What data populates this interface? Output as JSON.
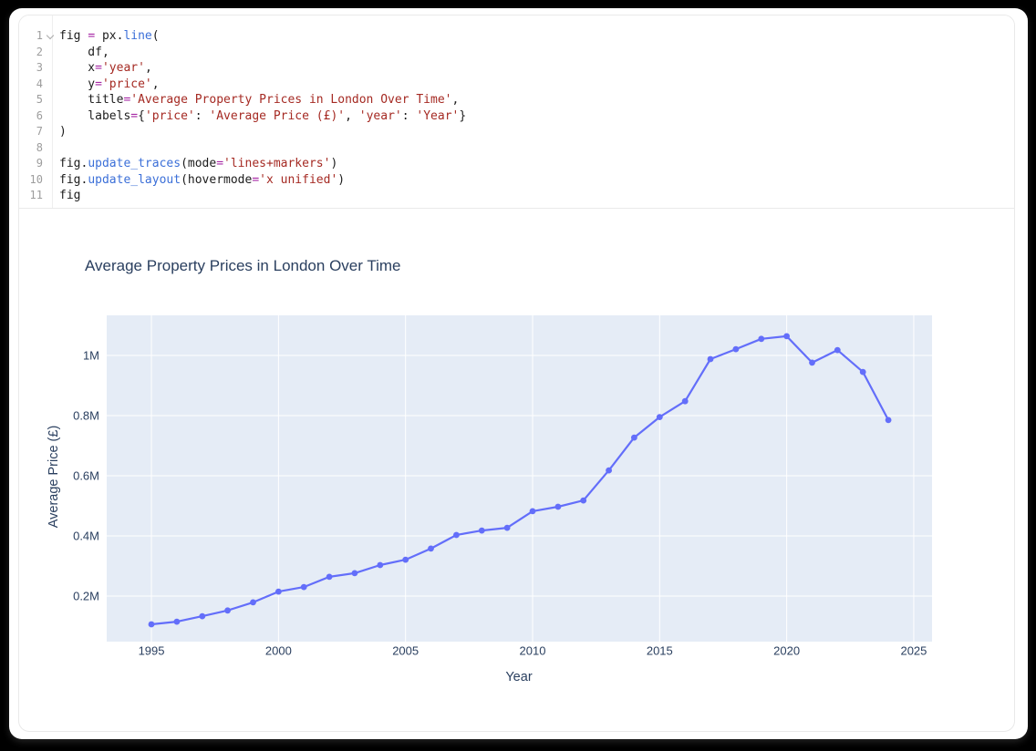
{
  "window": {
    "frame_color": "#000000",
    "card_color": "#ffffff"
  },
  "editor": {
    "border_color": "#e9e9e9",
    "gutter_color": "#9d9d9d",
    "colors": {
      "plain": "#1c1c1c",
      "function": "#3b6fd8",
      "operator": "#a626a4",
      "string": "#a52a23"
    },
    "lines": [
      {
        "num": "1",
        "fold": true,
        "tokens": [
          [
            "plain",
            "fig "
          ],
          [
            "operator",
            "="
          ],
          [
            "plain",
            " px."
          ],
          [
            "function",
            "line"
          ],
          [
            "plain",
            "("
          ]
        ]
      },
      {
        "num": "2",
        "tokens": [
          [
            "plain",
            "    df,"
          ]
        ]
      },
      {
        "num": "3",
        "tokens": [
          [
            "plain",
            "    x"
          ],
          [
            "operator",
            "="
          ],
          [
            "string",
            "'year'"
          ],
          [
            "plain",
            ","
          ]
        ]
      },
      {
        "num": "4",
        "tokens": [
          [
            "plain",
            "    y"
          ],
          [
            "operator",
            "="
          ],
          [
            "string",
            "'price'"
          ],
          [
            "plain",
            ","
          ]
        ]
      },
      {
        "num": "5",
        "tokens": [
          [
            "plain",
            "    title"
          ],
          [
            "operator",
            "="
          ],
          [
            "string",
            "'Average Property Prices in London Over Time'"
          ],
          [
            "plain",
            ","
          ]
        ]
      },
      {
        "num": "6",
        "tokens": [
          [
            "plain",
            "    labels"
          ],
          [
            "operator",
            "="
          ],
          [
            "plain",
            "{"
          ],
          [
            "string",
            "'price'"
          ],
          [
            "plain",
            ": "
          ],
          [
            "string",
            "'Average Price (£)'"
          ],
          [
            "plain",
            ", "
          ],
          [
            "string",
            "'year'"
          ],
          [
            "plain",
            ": "
          ],
          [
            "string",
            "'Year'"
          ],
          [
            "plain",
            "}"
          ]
        ]
      },
      {
        "num": "7",
        "tokens": [
          [
            "plain",
            ")"
          ]
        ]
      },
      {
        "num": "8",
        "tokens": []
      },
      {
        "num": "9",
        "tokens": [
          [
            "plain",
            "fig."
          ],
          [
            "function",
            "update_traces"
          ],
          [
            "plain",
            "(mode"
          ],
          [
            "operator",
            "="
          ],
          [
            "string",
            "'lines+markers'"
          ],
          [
            "plain",
            ")"
          ]
        ]
      },
      {
        "num": "10",
        "tokens": [
          [
            "plain",
            "fig."
          ],
          [
            "function",
            "update_layout"
          ],
          [
            "plain",
            "(hovermode"
          ],
          [
            "operator",
            "="
          ],
          [
            "string",
            "'x unified'"
          ],
          [
            "plain",
            ")"
          ]
        ]
      },
      {
        "num": "11",
        "tokens": [
          [
            "plain",
            "fig"
          ]
        ]
      }
    ]
  },
  "chart_data": {
    "type": "line",
    "mode": "lines+markers",
    "title": "Average Property Prices in London Over Time",
    "xlabel": "Year",
    "ylabel": "Average Price (£)",
    "series_name": "price",
    "x": [
      1995,
      1996,
      1997,
      1998,
      1999,
      2000,
      2001,
      2002,
      2003,
      2004,
      2005,
      2006,
      2007,
      2008,
      2009,
      2010,
      2011,
      2012,
      2013,
      2014,
      2015,
      2016,
      2017,
      2018,
      2019,
      2020,
      2021,
      2022,
      2023,
      2024
    ],
    "y_million_gbp": [
      0.106,
      0.115,
      0.133,
      0.152,
      0.179,
      0.215,
      0.23,
      0.264,
      0.276,
      0.303,
      0.321,
      0.358,
      0.403,
      0.418,
      0.427,
      0.482,
      0.497,
      0.518,
      0.618,
      0.727,
      0.795,
      0.848,
      0.988,
      1.021,
      1.055,
      1.064,
      0.976,
      1.018,
      0.945,
      0.785
    ],
    "xticks": [
      1995,
      2000,
      2005,
      2010,
      2015,
      2020,
      2025
    ],
    "yticks": [
      {
        "v": 0.2,
        "label": "0.2M"
      },
      {
        "v": 0.4,
        "label": "0.4M"
      },
      {
        "v": 0.6,
        "label": "0.6M"
      },
      {
        "v": 0.8,
        "label": "0.8M"
      },
      {
        "v": 1.0,
        "label": "1M"
      }
    ],
    "xrange": [
      1993.24,
      2025.72
    ],
    "yrange": [
      0.0485,
      1.1333
    ],
    "grid": true,
    "legend": "none",
    "colors": {
      "line": "#636efa",
      "marker": "#636efa",
      "plot_bg": "#e5ecf6",
      "grid": "#ffffff",
      "text": "#2a3f5f"
    }
  }
}
